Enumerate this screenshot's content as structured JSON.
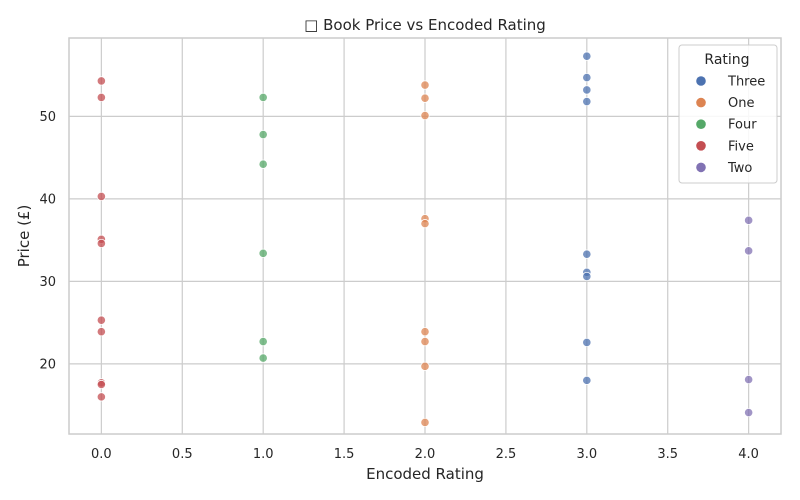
{
  "chart_data": {
    "type": "scatter",
    "title": "□ Book Price vs Encoded Rating",
    "xlabel": "Encoded Rating",
    "ylabel": "Price (£)",
    "xlim": [
      -0.2,
      4.2
    ],
    "ylim": [
      11.5,
      59.5
    ],
    "xticks": [
      0.0,
      0.5,
      1.0,
      1.5,
      2.0,
      2.5,
      3.0,
      3.5,
      4.0
    ],
    "xtick_labels": [
      "0.0",
      "0.5",
      "1.0",
      "1.5",
      "2.0",
      "2.5",
      "3.0",
      "3.5",
      "4.0"
    ],
    "yticks": [
      20,
      30,
      40,
      50
    ],
    "ytick_labels": [
      "20",
      "30",
      "40",
      "50"
    ],
    "grid": true,
    "legend": {
      "title": "Rating",
      "placement": "top-right"
    },
    "series": [
      {
        "name": "Three",
        "color": "#4c72b0",
        "points": [
          [
            3,
            57.3
          ],
          [
            3,
            54.7
          ],
          [
            3,
            53.2
          ],
          [
            3,
            51.8
          ],
          [
            3,
            33.3
          ],
          [
            3,
            31.1
          ],
          [
            3,
            30.6
          ],
          [
            3,
            22.6
          ],
          [
            3,
            18.0
          ]
        ]
      },
      {
        "name": "One",
        "color": "#dd8452",
        "points": [
          [
            2,
            53.8
          ],
          [
            2,
            52.2
          ],
          [
            2,
            50.1
          ],
          [
            2,
            37.6
          ],
          [
            2,
            37.0
          ],
          [
            2,
            23.9
          ],
          [
            2,
            22.7
          ],
          [
            2,
            19.7
          ],
          [
            2,
            12.9
          ]
        ]
      },
      {
        "name": "Four",
        "color": "#55a868",
        "points": [
          [
            1,
            52.3
          ],
          [
            1,
            47.8
          ],
          [
            1,
            44.2
          ],
          [
            1,
            33.4
          ],
          [
            1,
            22.7
          ],
          [
            1,
            20.7
          ]
        ]
      },
      {
        "name": "Five",
        "color": "#c44e52",
        "points": [
          [
            0,
            54.3
          ],
          [
            0,
            52.3
          ],
          [
            0,
            40.3
          ],
          [
            0,
            35.1
          ],
          [
            0,
            34.6
          ],
          [
            0,
            25.3
          ],
          [
            0,
            23.9
          ],
          [
            0,
            17.7
          ],
          [
            0,
            17.5
          ],
          [
            0,
            16.0
          ]
        ]
      },
      {
        "name": "Two",
        "color": "#8172b3",
        "points": [
          [
            4,
            37.4
          ],
          [
            4,
            33.7
          ],
          [
            4,
            18.1
          ],
          [
            4,
            14.1
          ]
        ]
      }
    ]
  }
}
